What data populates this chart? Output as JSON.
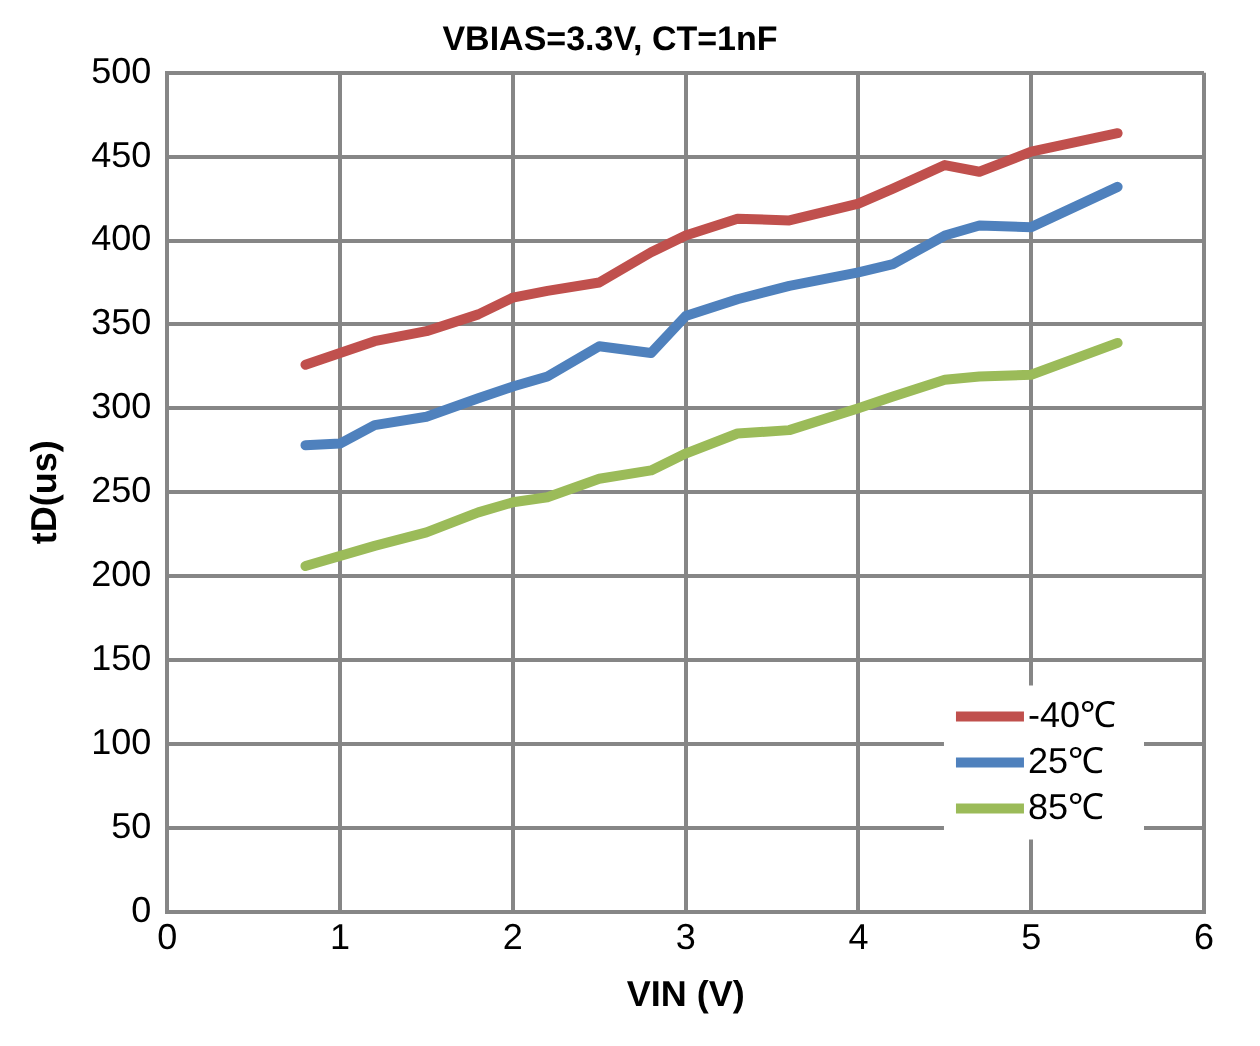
{
  "chart_data": {
    "type": "line",
    "title": "VBIAS=3.3V, CT=1nF",
    "xlabel": "VIN (V)",
    "ylabel": "tD(us)",
    "xlim": [
      0,
      6
    ],
    "xticks": [
      0,
      1,
      2,
      3,
      4,
      5,
      6
    ],
    "ylim": [
      0,
      500
    ],
    "yticks": [
      0,
      50,
      100,
      150,
      200,
      250,
      300,
      350,
      400,
      450,
      500
    ],
    "grid": true,
    "legend": "bottom right",
    "marker": "none",
    "line_style": "solid",
    "series": [
      {
        "name": "-40℃",
        "color": "#c0504d",
        "x": [
          0.8,
          1.2,
          1.5,
          1.8,
          2.0,
          2.2,
          2.5,
          2.8,
          3.0,
          3.3,
          3.6,
          4.0,
          4.2,
          4.5,
          4.7,
          5.0,
          5.5
        ],
        "values": [
          326,
          340,
          346,
          356,
          366,
          370,
          375,
          393,
          403,
          413,
          412,
          422,
          431,
          445,
          441,
          453,
          464
        ]
      },
      {
        "name": "25℃",
        "color": "#4f81bd",
        "x": [
          0.8,
          1.0,
          1.2,
          1.5,
          1.8,
          2.0,
          2.2,
          2.5,
          2.8,
          3.0,
          3.3,
          3.6,
          4.0,
          4.2,
          4.5,
          4.7,
          5.0,
          5.5
        ],
        "values": [
          278,
          279,
          290,
          295,
          306,
          313,
          319,
          337,
          333,
          355,
          365,
          373,
          381,
          386,
          403,
          409,
          408,
          432
        ]
      },
      {
        "name": "85℃",
        "color": "#9bbb59",
        "x": [
          0.8,
          1.2,
          1.5,
          1.8,
          2.0,
          2.2,
          2.5,
          2.8,
          3.0,
          3.3,
          3.6,
          4.0,
          4.2,
          4.5,
          4.7,
          5.0,
          5.5
        ],
        "values": [
          206,
          218,
          226,
          238,
          244,
          247,
          258,
          263,
          273,
          285,
          287,
          300,
          307,
          317,
          319,
          320,
          339
        ]
      }
    ]
  }
}
